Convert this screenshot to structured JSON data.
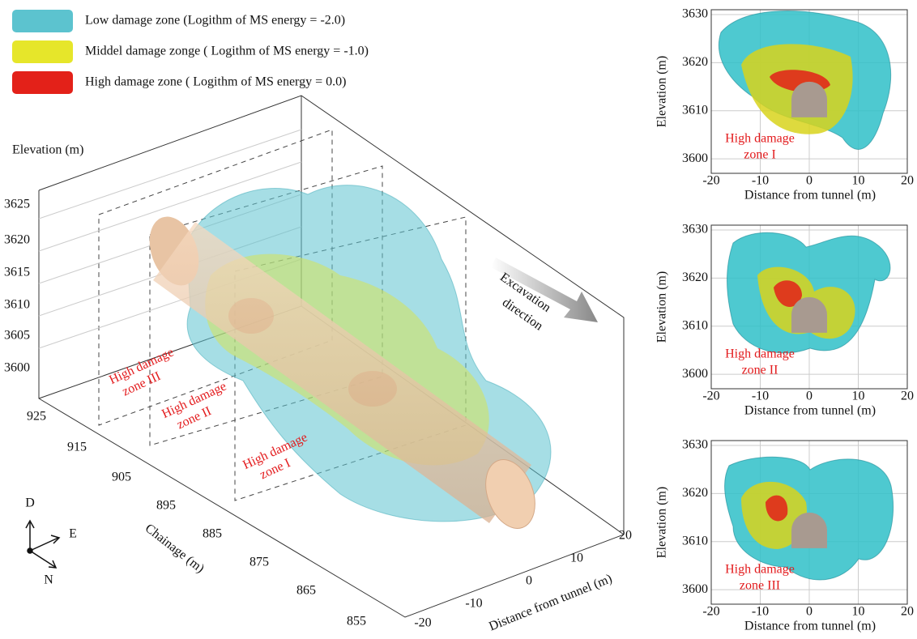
{
  "legend": [
    {
      "label": "Low damage zone (Logithm of MS energy = -2.0)",
      "color": "#5cc3cf"
    },
    {
      "label": "Middel damage zonge ( Logithm of MS energy = -1.0)",
      "color": "#e6e62a"
    },
    {
      "label": "High damage zone ( Logithm of MS energy = 0.0)",
      "color": "#e32119"
    }
  ],
  "main_plot": {
    "elevation_label": "Elevation (m)",
    "elevation_ticks": [
      "3625",
      "3620",
      "3615",
      "3610",
      "3605",
      "3600"
    ],
    "chainage_label": "Chainage (m)",
    "chainage_ticks": [
      "925",
      "915",
      "905",
      "895",
      "885",
      "875",
      "865",
      "855"
    ],
    "distance_label": "Distance from tunnel (m)",
    "distance_ticks": [
      "-20",
      "-10",
      "0",
      "10",
      "20"
    ],
    "excavation_label": [
      "Excavation",
      "direction"
    ],
    "zone_labels": [
      [
        "High damage",
        "zone III"
      ],
      [
        "High damage",
        "zone II"
      ],
      [
        "High damage",
        "zone I"
      ]
    ],
    "compass": [
      "D",
      "E",
      "N"
    ]
  },
  "panels": [
    {
      "zone_label": [
        "High damage",
        "zone I"
      ],
      "ylabel": "Elevation (m)",
      "xlabel": "Distance from tunnel (m)",
      "xlim": [
        -20,
        20
      ],
      "ylim": [
        3597,
        3631
      ],
      "xticks": [
        -20,
        -10,
        0,
        10,
        20
      ],
      "yticks": [
        3600,
        3610,
        3620,
        3630
      ]
    },
    {
      "zone_label": [
        "High damage",
        "zone II"
      ],
      "ylabel": "Elevation (m)",
      "xlabel": "Distance from tunnel (m)",
      "xlim": [
        -20,
        20
      ],
      "ylim": [
        3597,
        3631
      ],
      "xticks": [
        -20,
        -10,
        0,
        10,
        20
      ],
      "yticks": [
        3600,
        3610,
        3620,
        3630
      ]
    },
    {
      "zone_label": [
        "High damage",
        "zone III"
      ],
      "ylabel": "Elevation (m)",
      "xlabel": "Distance from tunnel (m)",
      "xlim": [
        -20,
        20
      ],
      "ylim": [
        3597,
        3631
      ],
      "xticks": [
        -20,
        -10,
        0,
        10,
        20
      ],
      "yticks": [
        3600,
        3610,
        3620,
        3630
      ]
    }
  ]
}
